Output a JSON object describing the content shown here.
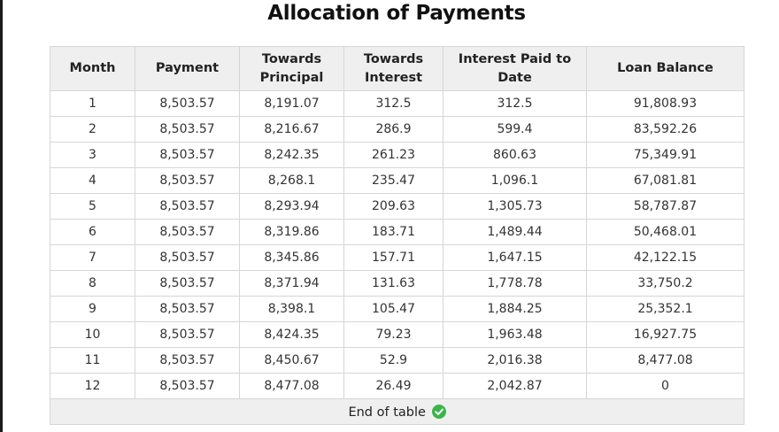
{
  "title": "Allocation of Payments",
  "table": {
    "headers": [
      "Month",
      "Payment",
      "Towards Principal",
      "Towards Interest",
      "Interest Paid to Date",
      "Loan Balance"
    ],
    "rows": [
      [
        "1",
        "8,503.57",
        "8,191.07",
        "312.5",
        "312.5",
        "91,808.93"
      ],
      [
        "2",
        "8,503.57",
        "8,216.67",
        "286.9",
        "599.4",
        "83,592.26"
      ],
      [
        "3",
        "8,503.57",
        "8,242.35",
        "261.23",
        "860.63",
        "75,349.91"
      ],
      [
        "4",
        "8,503.57",
        "8,268.1",
        "235.47",
        "1,096.1",
        "67,081.81"
      ],
      [
        "5",
        "8,503.57",
        "8,293.94",
        "209.63",
        "1,305.73",
        "58,787.87"
      ],
      [
        "6",
        "8,503.57",
        "8,319.86",
        "183.71",
        "1,489.44",
        "50,468.01"
      ],
      [
        "7",
        "8,503.57",
        "8,345.86",
        "157.71",
        "1,647.15",
        "42,122.15"
      ],
      [
        "8",
        "8,503.57",
        "8,371.94",
        "131.63",
        "1,778.78",
        "33,750.2"
      ],
      [
        "9",
        "8,503.57",
        "8,398.1",
        "105.47",
        "1,884.25",
        "25,352.1"
      ],
      [
        "10",
        "8,503.57",
        "8,424.35",
        "79.23",
        "1,963.48",
        "16,927.75"
      ],
      [
        "11",
        "8,503.57",
        "8,450.67",
        "52.9",
        "2,016.38",
        "8,477.08"
      ],
      [
        "12",
        "8,503.57",
        "8,477.08",
        "26.49",
        "2,042.87",
        "0"
      ]
    ],
    "footer": "End of table"
  },
  "icons": {
    "end_icon": "check-circle-icon"
  },
  "colors": {
    "check": "#3bb54a",
    "header_bg": "#efefef",
    "border": "#d6d6d6"
  }
}
